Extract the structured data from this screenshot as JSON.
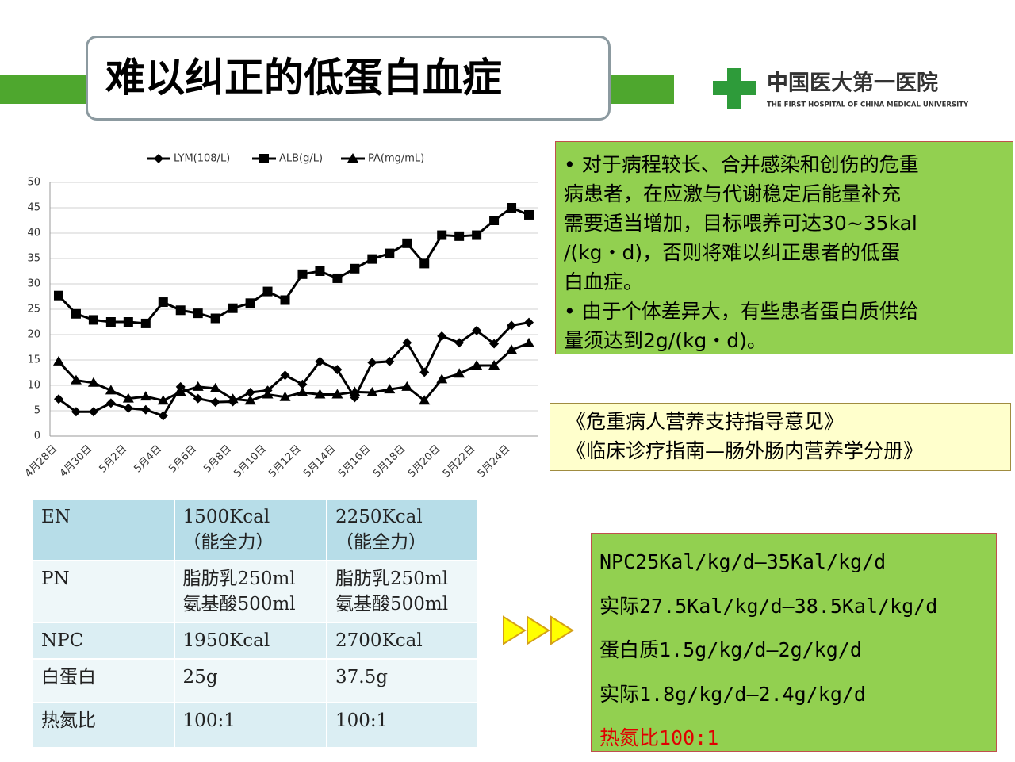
{
  "header": {
    "title": "难以纠正的低蛋白血症",
    "logo_cn": "中国医大第一医院",
    "logo_en": "THE FIRST HOSPITAL OF CHINA MEDICAL UNIVERSITY"
  },
  "chart_data": {
    "type": "line",
    "categories": [
      "4月28日",
      null,
      "4月30日",
      null,
      "5月2日",
      null,
      "5月4日",
      null,
      "5月6日",
      null,
      "5月8日",
      null,
      "5月10日",
      null,
      "5月12日",
      null,
      "5月14日",
      null,
      "5月16日",
      null,
      "5月18日",
      null,
      "5月20日",
      null,
      "5月22日",
      null,
      "5月24日",
      null
    ],
    "series": [
      {
        "name": "LYM(108/L)",
        "color": "#000000",
        "marker": "diamond",
        "values": [
          7.3,
          4.8,
          4.8,
          6.5,
          5.5,
          5.2,
          4.0,
          9.7,
          7.4,
          6.7,
          6.8,
          8.6,
          9.0,
          12.0,
          10.2,
          14.7,
          13.1,
          7.6,
          14.5,
          14.7,
          18.4,
          12.6,
          19.7,
          18.4,
          20.8,
          18.2,
          21.8,
          22.4
        ]
      },
      {
        "name": "ALB(g/L)",
        "color": "#000000",
        "marker": "square",
        "values": [
          27.7,
          24.1,
          22.9,
          22.5,
          22.5,
          22.2,
          26.4,
          24.8,
          24.2,
          23.2,
          25.2,
          26.2,
          28.5,
          26.8,
          31.9,
          32.5,
          31.1,
          33.0,
          34.9,
          36.0,
          38.0,
          34.0,
          39.6,
          39.4,
          39.6,
          42.5,
          45.0,
          43.6
        ]
      },
      {
        "name": "PA(mg/mL)",
        "color": "#000000",
        "marker": "triangle",
        "values": [
          14.7,
          11.0,
          10.5,
          9.0,
          7.4,
          7.8,
          7.0,
          8.7,
          9.7,
          9.4,
          7.3,
          7.0,
          8.2,
          7.7,
          8.6,
          8.2,
          8.2,
          8.7,
          8.6,
          9.2,
          9.7,
          7.0,
          11.2,
          12.3,
          13.9,
          13.9,
          17.0,
          18.3
        ]
      }
    ],
    "ylim": [
      0,
      50
    ],
    "yticks": [
      0,
      5,
      10,
      15,
      20,
      25,
      30,
      35,
      40,
      45,
      50
    ],
    "grid": true,
    "legend": "top"
  },
  "notes": {
    "lines": [
      "• 对于病程较长、合并感染和创伤的危重",
      "病患者，在应激与代谢稳定后能量补充",
      "需要适当增加，目标喂养可达30~35kal",
      "/(kg・d)，否则将难以纠正患者的低蛋",
      "白血症。",
      "• 由于个体差异大，有些患者蛋白质供给",
      "量须达到2g/(kg・d)。"
    ]
  },
  "references": [
    "《危重病人营养支持指导意见》",
    "《临床诊疗指南—肠外肠内营养学分册》"
  ],
  "table": {
    "rows": [
      [
        [
          "EN"
        ],
        [
          "1500Kcal",
          "（能全力）"
        ],
        [
          "2250Kcal",
          "（能全力）"
        ]
      ],
      [
        [
          "PN"
        ],
        [
          "脂肪乳250ml",
          "氨基酸500ml"
        ],
        [
          "脂肪乳250ml",
          "氨基酸500ml"
        ]
      ],
      [
        [
          "NPC"
        ],
        [
          "1950Kcal"
        ],
        [
          "2700Kcal"
        ]
      ],
      [
        [
          "白蛋白"
        ],
        [
          "25g"
        ],
        [
          "37.5g"
        ]
      ],
      [
        [
          "热氮比"
        ],
        [
          "100:1"
        ],
        [
          "100:1"
        ]
      ]
    ]
  },
  "summary": {
    "lines": [
      "NPC25Kal/kg/d—35Kal/kg/d",
      "实际27.5Kal/kg/d—38.5Kal/kg/d",
      "蛋白质1.5g/kg/d—2g/kg/d",
      "实际1.8g/kg/d—2.4g/kg/d",
      "热氮比100:1"
    ]
  }
}
